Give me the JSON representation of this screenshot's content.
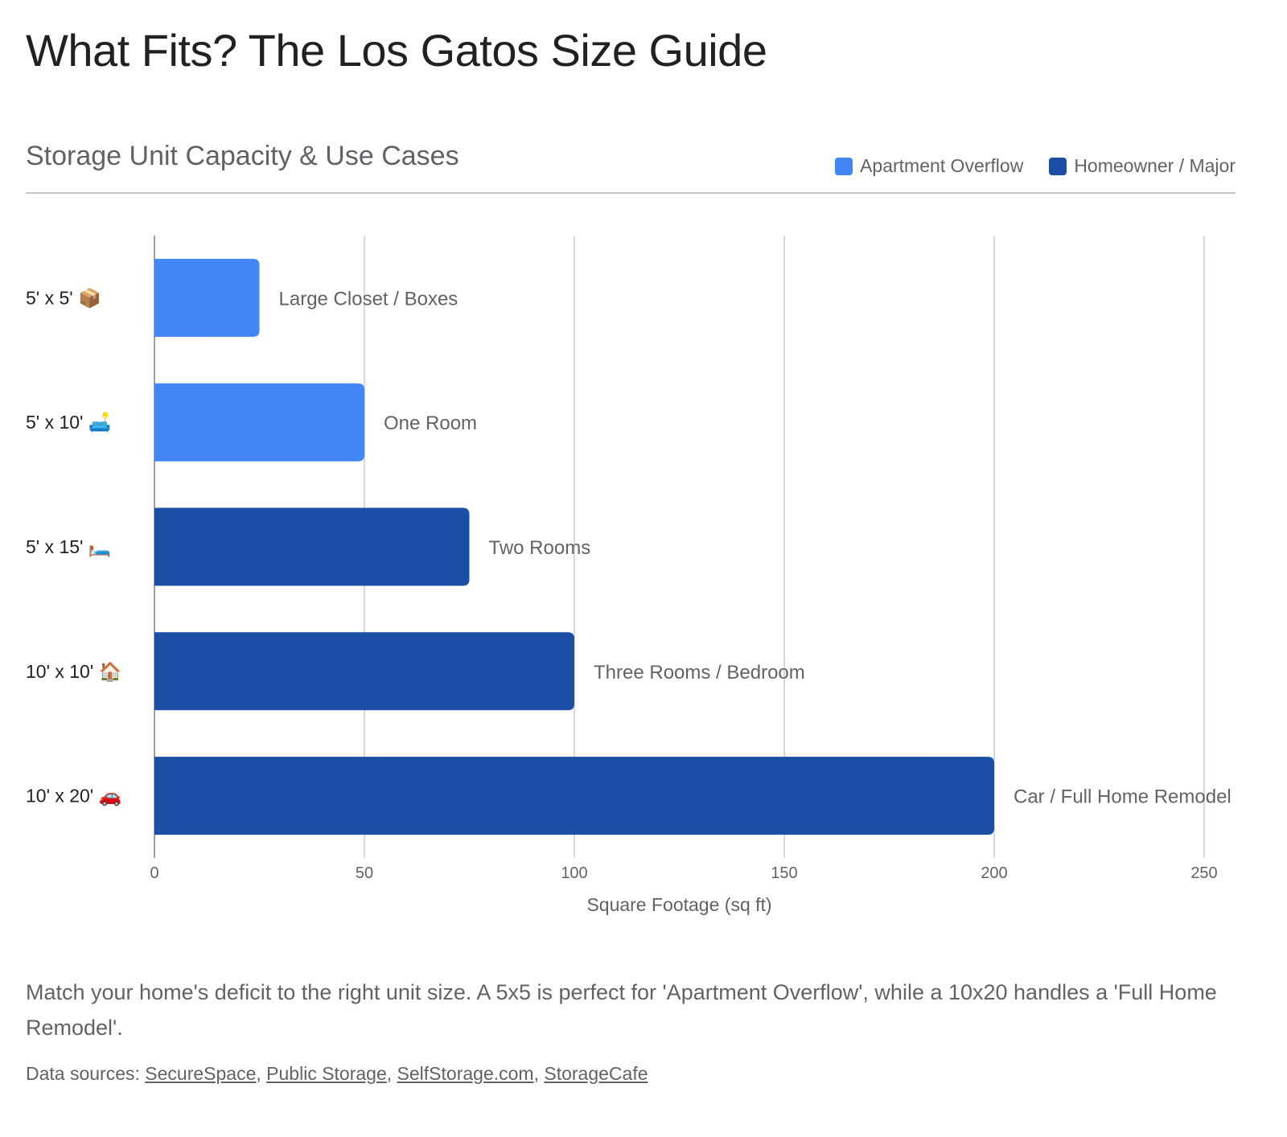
{
  "title": "What Fits? The Los Gatos Size Guide",
  "subtitle": "Storage Unit Capacity & Use Cases",
  "legend": [
    {
      "label": "Apartment Overflow",
      "color": "#4285f4"
    },
    {
      "label": "Homeowner / Major",
      "color": "#1a4fa5"
    }
  ],
  "chart_data": {
    "type": "bar",
    "orientation": "horizontal",
    "categories": [
      "5' x 5' 📦",
      "5' x 10' 🛋️",
      "5' x 15' 🛏️",
      "10' x 10' 🏠",
      "10' x 20' 🚗"
    ],
    "values": [
      25,
      50,
      75,
      100,
      200
    ],
    "series_of_bar": [
      "Apartment Overflow",
      "Apartment Overflow",
      "Homeowner / Major",
      "Homeowner / Major",
      "Homeowner / Major"
    ],
    "data_labels": [
      "Large Closet / Boxes",
      "One Room",
      "Two Rooms",
      "Three Rooms / Bedroom",
      "Car / Full Home Remodel"
    ],
    "xlabel": "Square Footage (sq ft)",
    "xlim": [
      0,
      250
    ],
    "xticks": [
      0,
      50,
      100,
      150,
      200,
      250
    ],
    "grid": true,
    "legend_position": "top-right"
  },
  "description": "Match your home's deficit to the right unit size. A 5x5 is perfect for 'Apartment Overflow', while a 10x20 handles a 'Full Home Remodel'.",
  "sources": {
    "label": "Data sources:",
    "links": [
      "SecureSpace",
      "Public Storage",
      "SelfStorage.com",
      "StorageCafe"
    ]
  }
}
